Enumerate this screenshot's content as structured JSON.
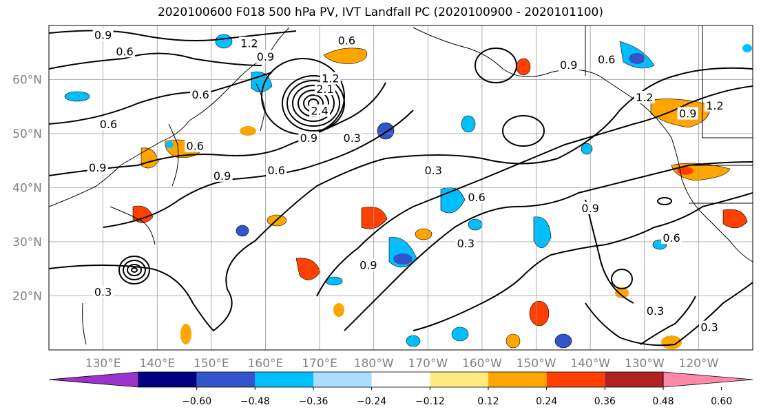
{
  "title": "2020100600 F018 500 hPa PV, IVT Landfall PC (2020100900 - 2020101100)",
  "map": {
    "lon_range": [
      120,
      250
    ],
    "lat_range": [
      10,
      70
    ],
    "lat_ticks": [
      {
        "lat": 20,
        "label": "20°N"
      },
      {
        "lat": 30,
        "label": "30°N"
      },
      {
        "lat": 40,
        "label": "40°N"
      },
      {
        "lat": 50,
        "label": "50°N"
      },
      {
        "lat": 60,
        "label": "60°N"
      }
    ],
    "lon_ticks": [
      {
        "lon": 130,
        "label": "130°E"
      },
      {
        "lon": 140,
        "label": "140°E"
      },
      {
        "lon": 150,
        "label": "150°E"
      },
      {
        "lon": 160,
        "label": "160°E"
      },
      {
        "lon": 170,
        "label": "170°E"
      },
      {
        "lon": 180,
        "label": "180°W"
      },
      {
        "lon": 190,
        "label": "170°W"
      },
      {
        "lon": 200,
        "label": "160°W"
      },
      {
        "lon": 210,
        "label": "150°W"
      },
      {
        "lon": 220,
        "label": "140°W"
      },
      {
        "lon": 230,
        "label": "130°W"
      },
      {
        "lon": 240,
        "label": "120°W"
      }
    ],
    "grid": true,
    "contour_labels": [
      {
        "text": "0.9",
        "lon": 130,
        "lat": 68
      },
      {
        "text": "0.6",
        "lon": 134,
        "lat": 65
      },
      {
        "text": "1.2",
        "lon": 157,
        "lat": 66.5
      },
      {
        "text": "0.9",
        "lon": 160,
        "lat": 64
      },
      {
        "text": "0.6",
        "lon": 175,
        "lat": 67
      },
      {
        "text": "1.2",
        "lon": 172,
        "lat": 60
      },
      {
        "text": "2.1",
        "lon": 171,
        "lat": 58
      },
      {
        "text": "2.4",
        "lon": 170,
        "lat": 54
      },
      {
        "text": "0.6",
        "lon": 148,
        "lat": 57
      },
      {
        "text": "0.6",
        "lon": 131,
        "lat": 51.5
      },
      {
        "text": "0.6",
        "lon": 147,
        "lat": 47.5
      },
      {
        "text": "0.9",
        "lon": 129,
        "lat": 43.5
      },
      {
        "text": "0.9",
        "lon": 152,
        "lat": 42
      },
      {
        "text": "0.6",
        "lon": 162,
        "lat": 43
      },
      {
        "text": "0.9",
        "lon": 168,
        "lat": 49
      },
      {
        "text": "0.3",
        "lon": 176,
        "lat": 49
      },
      {
        "text": "0.3",
        "lon": 191,
        "lat": 43
      },
      {
        "text": "0.6",
        "lon": 199,
        "lat": 38
      },
      {
        "text": "0.9",
        "lon": 216,
        "lat": 62.5
      },
      {
        "text": "0.6",
        "lon": 223,
        "lat": 63.5
      },
      {
        "text": "1.2",
        "lon": 230,
        "lat": 56.5
      },
      {
        "text": "0.9",
        "lon": 238,
        "lat": 53.5
      },
      {
        "text": "1.2",
        "lon": 243,
        "lat": 55
      },
      {
        "text": "0.9",
        "lon": 220,
        "lat": 36
      },
      {
        "text": "0.6",
        "lon": 235,
        "lat": 30.5
      },
      {
        "text": "0.3",
        "lon": 197,
        "lat": 29.5
      },
      {
        "text": "0.9",
        "lon": 179,
        "lat": 25.5
      },
      {
        "text": "0.3",
        "lon": 130,
        "lat": 20.5
      },
      {
        "text": "0.3",
        "lon": 232,
        "lat": 17
      },
      {
        "text": "0.3",
        "lon": 242,
        "lat": 14
      }
    ]
  },
  "colorbar": {
    "colors": [
      "#9933cc",
      "#000080",
      "#3355cc",
      "#00bfff",
      "#aaddff",
      "#ffffff",
      "#ffeb80",
      "#ffa500",
      "#ff4000",
      "#b22222",
      "#ff88aa"
    ],
    "ticks": [
      "−0.60",
      "−0.48",
      "−0.36",
      "−0.24",
      "−0.12",
      "0.12",
      "0.24",
      "0.36",
      "0.48",
      "0.60"
    ]
  }
}
